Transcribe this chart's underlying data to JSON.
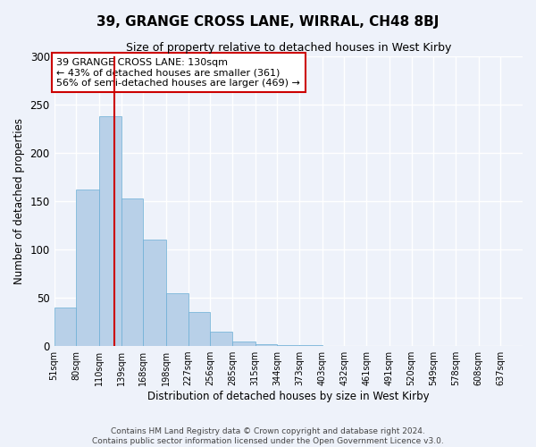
{
  "title": "39, GRANGE CROSS LANE, WIRRAL, CH48 8BJ",
  "subtitle": "Size of property relative to detached houses in West Kirby",
  "xlabel": "Distribution of detached houses by size in West Kirby",
  "ylabel": "Number of detached properties",
  "bin_labels": [
    "51sqm",
    "80sqm",
    "110sqm",
    "139sqm",
    "168sqm",
    "198sqm",
    "227sqm",
    "256sqm",
    "285sqm",
    "315sqm",
    "344sqm",
    "373sqm",
    "403sqm",
    "432sqm",
    "461sqm",
    "491sqm",
    "520sqm",
    "549sqm",
    "578sqm",
    "608sqm",
    "637sqm"
  ],
  "bar_heights": [
    40,
    162,
    238,
    153,
    110,
    55,
    35,
    15,
    5,
    2,
    1,
    1,
    0,
    0,
    0,
    0,
    0,
    0,
    0,
    0
  ],
  "bar_color": "#b8d0e8",
  "bar_edge_color": "#6aaed6",
  "vline_x": 130,
  "vline_color": "#cc0000",
  "ylim": [
    0,
    300
  ],
  "yticks": [
    0,
    50,
    100,
    150,
    200,
    250,
    300
  ],
  "annotation_text": "39 GRANGE CROSS LANE: 130sqm\n← 43% of detached houses are smaller (361)\n56% of semi-detached houses are larger (469) →",
  "annotation_box_color": "#ffffff",
  "annotation_box_edge": "#cc0000",
  "footer_text": "Contains HM Land Registry data © Crown copyright and database right 2024.\nContains public sector information licensed under the Open Government Licence v3.0.",
  "background_color": "#eef2fa",
  "grid_color": "#ffffff",
  "bin_edges": [
    51,
    80,
    110,
    139,
    168,
    198,
    227,
    256,
    285,
    315,
    344,
    373,
    403,
    432,
    461,
    491,
    520,
    549,
    578,
    608,
    637
  ]
}
